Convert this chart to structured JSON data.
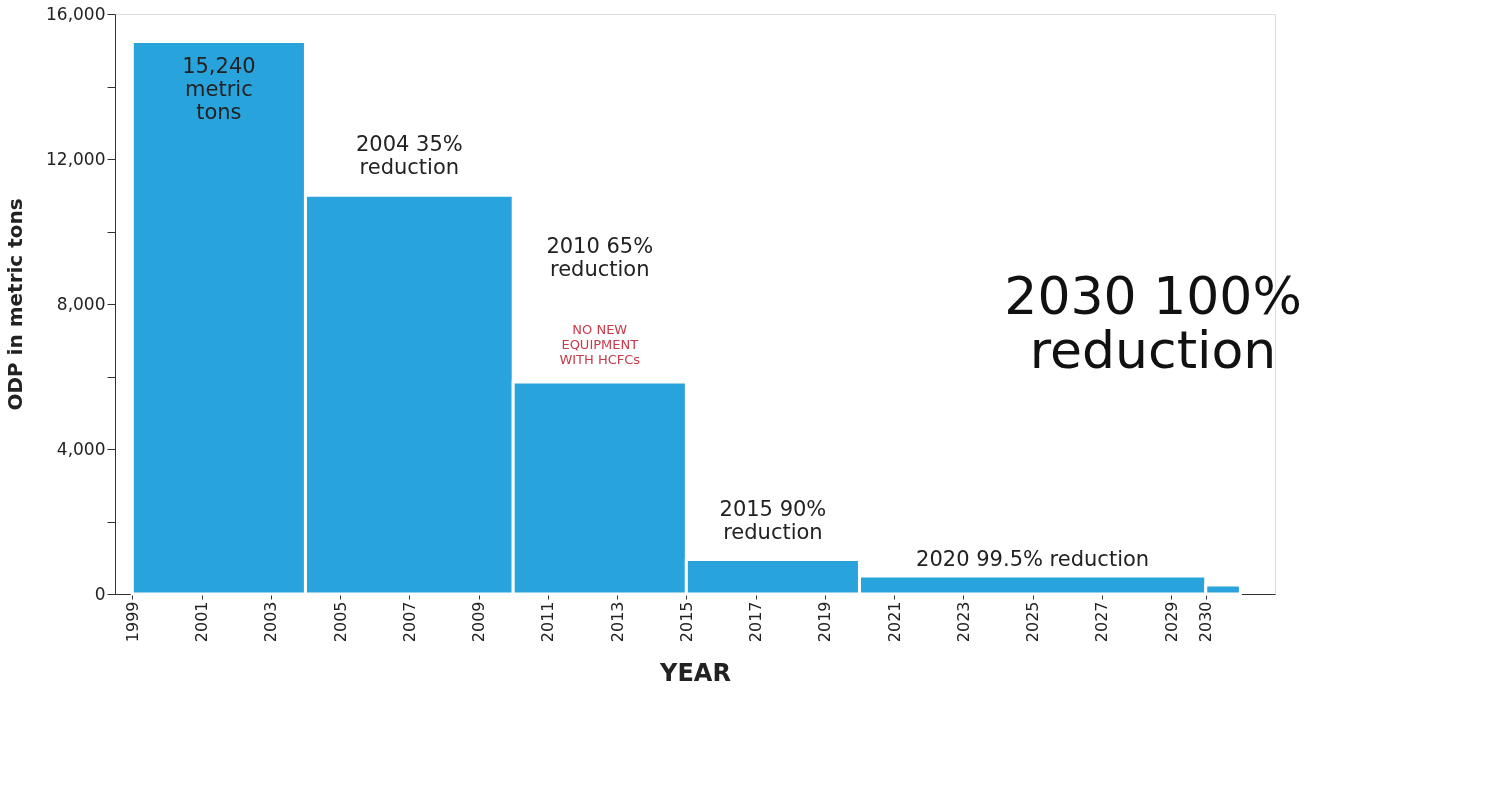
{
  "chart_data": {
    "type": "histogram",
    "xlabel": "YEAR",
    "ylabel": "ODP in metric tons",
    "bins": [
      1999,
      2004,
      2010,
      2015,
      2020,
      2030,
      2031
    ],
    "values": [
      15240,
      11000,
      5850,
      950,
      500,
      250
    ],
    "color": "#29a3dc",
    "xlim": [
      1998.5,
      2032
    ],
    "xticks": [
      1999,
      2001,
      2003,
      2005,
      2007,
      2009,
      2011,
      2013,
      2015,
      2017,
      2019,
      2021,
      2023,
      2025,
      2027,
      2029,
      2030
    ],
    "ylim": [
      0,
      16000
    ],
    "yticks": [
      {
        "value": 0,
        "label": "0"
      },
      {
        "value": 2000,
        "label": null
      },
      {
        "value": 4000,
        "label": "4,000"
      },
      {
        "value": 6000,
        "label": null
      },
      {
        "value": 8000,
        "label": "8,000"
      },
      {
        "value": 10000,
        "label": null
      },
      {
        "value": 12000,
        "label": "12,000"
      },
      {
        "value": 14000,
        "label": null
      },
      {
        "value": 16000,
        "label": "16,000"
      }
    ],
    "grid": false,
    "annotations": [
      "15,240\nmetric\ntons",
      "2004 35%\nreduction",
      "2010 65%\nreduction",
      "NO NEW\nEQUIPMENT\nWITH HCFCs",
      "2015 90%\nreduction",
      "2020 99.5% reduction",
      "2030 100%\nreduction"
    ]
  }
}
